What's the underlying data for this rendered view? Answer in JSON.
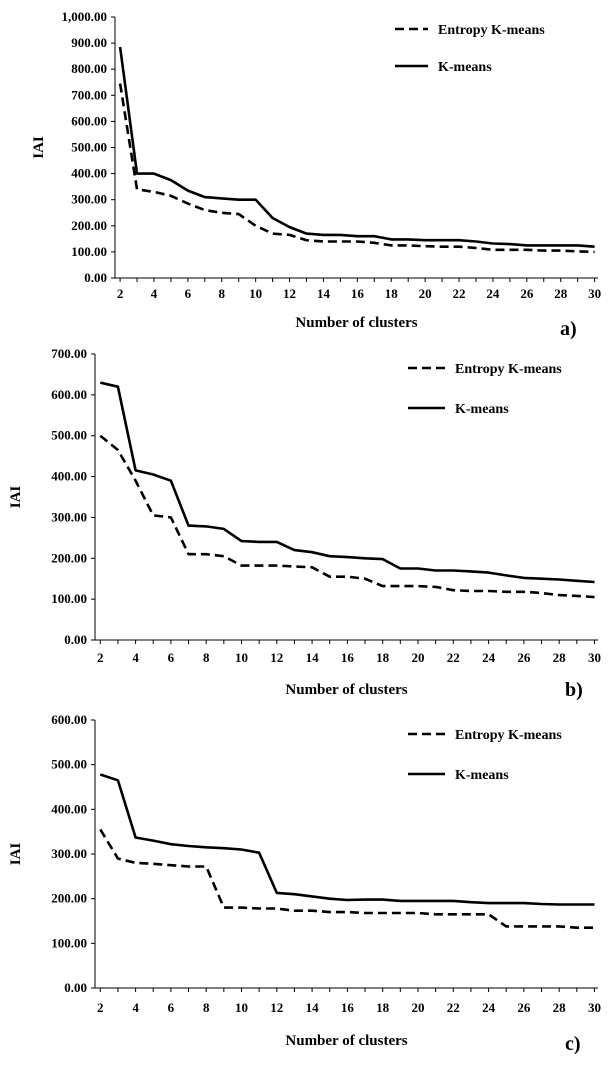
{
  "chart_data": [
    {
      "type": "line",
      "panel_label": "a)",
      "xlabel": "Number of clusters",
      "ylabel": "IAI",
      "ylim": [
        0,
        1000
      ],
      "y_ticks": [
        "0.00",
        "100.00",
        "200.00",
        "300.00",
        "400.00",
        "500.00",
        "600.00",
        "700.00",
        "800.00",
        "900.00",
        "1,000.00"
      ],
      "x_ticks": [
        "2",
        "4",
        "6",
        "8",
        "10",
        "12",
        "14",
        "16",
        "18",
        "20",
        "22",
        "24",
        "26",
        "28",
        "30"
      ],
      "legend_position": "top-right",
      "x": [
        2,
        3,
        4,
        5,
        6,
        7,
        8,
        9,
        10,
        11,
        12,
        13,
        14,
        15,
        16,
        17,
        18,
        19,
        20,
        21,
        22,
        23,
        24,
        25,
        26,
        27,
        28,
        29,
        30
      ],
      "series": [
        {
          "name": "Entropy K-means",
          "style": "dashed",
          "values": [
            745,
            340,
            330,
            315,
            285,
            260,
            250,
            245,
            200,
            170,
            165,
            145,
            140,
            140,
            140,
            135,
            125,
            125,
            122,
            120,
            120,
            115,
            108,
            108,
            108,
            105,
            105,
            102,
            100
          ]
        },
        {
          "name": "K-means",
          "style": "solid",
          "values": [
            885,
            400,
            400,
            375,
            335,
            310,
            305,
            300,
            300,
            230,
            195,
            170,
            165,
            165,
            160,
            160,
            148,
            148,
            145,
            145,
            145,
            140,
            132,
            130,
            125,
            125,
            125,
            125,
            120
          ]
        }
      ]
    },
    {
      "type": "line",
      "panel_label": "b)",
      "xlabel": "Number of clusters",
      "ylabel": "IAI",
      "ylim": [
        0,
        700
      ],
      "y_ticks": [
        "0.00",
        "100.00",
        "200.00",
        "300.00",
        "400.00",
        "500.00",
        "600.00",
        "700.00"
      ],
      "x_ticks": [
        "2",
        "4",
        "6",
        "8",
        "10",
        "12",
        "14",
        "16",
        "18",
        "20",
        "22",
        "24",
        "26",
        "28",
        "30"
      ],
      "legend_position": "top-right",
      "x": [
        2,
        3,
        4,
        5,
        6,
        7,
        8,
        9,
        10,
        11,
        12,
        13,
        14,
        15,
        16,
        17,
        18,
        19,
        20,
        21,
        22,
        23,
        24,
        25,
        26,
        27,
        28,
        29,
        30
      ],
      "series": [
        {
          "name": "Entropy K-means",
          "style": "dashed",
          "values": [
            500,
            465,
            390,
            305,
            300,
            210,
            210,
            205,
            182,
            182,
            182,
            180,
            178,
            155,
            155,
            150,
            132,
            132,
            132,
            130,
            122,
            120,
            120,
            118,
            118,
            115,
            110,
            108,
            105
          ]
        },
        {
          "name": "K-means",
          "style": "solid",
          "values": [
            630,
            620,
            415,
            405,
            390,
            280,
            278,
            272,
            242,
            240,
            240,
            220,
            215,
            205,
            203,
            200,
            198,
            175,
            175,
            170,
            170,
            168,
            165,
            158,
            152,
            150,
            148,
            145,
            142
          ]
        }
      ]
    },
    {
      "type": "line",
      "panel_label": "c)",
      "xlabel": "Number of clusters",
      "ylabel": "IAI",
      "ylim": [
        0,
        600
      ],
      "y_ticks": [
        "0.00",
        "100.00",
        "200.00",
        "300.00",
        "400.00",
        "500.00",
        "600.00"
      ],
      "x_ticks": [
        "2",
        "4",
        "6",
        "8",
        "10",
        "12",
        "14",
        "16",
        "18",
        "20",
        "22",
        "24",
        "26",
        "28",
        "30"
      ],
      "legend_position": "top-right",
      "x": [
        2,
        3,
        4,
        5,
        6,
        7,
        8,
        9,
        10,
        11,
        12,
        13,
        14,
        15,
        16,
        17,
        18,
        19,
        20,
        21,
        22,
        23,
        24,
        25,
        26,
        27,
        28,
        29,
        30
      ],
      "series": [
        {
          "name": "Entropy K-means",
          "style": "dashed",
          "values": [
            355,
            290,
            280,
            278,
            275,
            272,
            272,
            180,
            180,
            178,
            178,
            173,
            173,
            170,
            170,
            168,
            168,
            168,
            168,
            165,
            165,
            165,
            165,
            138,
            138,
            138,
            138,
            135,
            135
          ]
        },
        {
          "name": "K-means",
          "style": "solid",
          "values": [
            478,
            465,
            337,
            330,
            322,
            318,
            315,
            313,
            310,
            303,
            213,
            210,
            205,
            200,
            197,
            198,
            198,
            195,
            195,
            195,
            195,
            192,
            190,
            190,
            190,
            188,
            187,
            187,
            187
          ]
        }
      ]
    }
  ]
}
